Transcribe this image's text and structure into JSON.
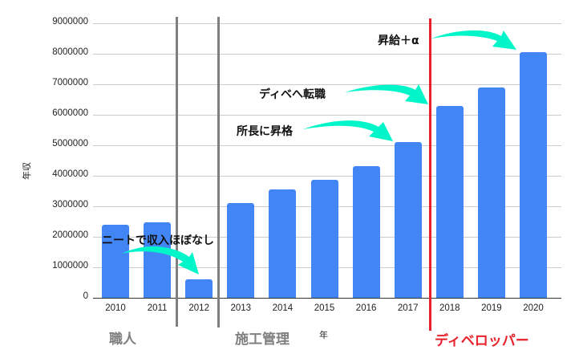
{
  "chart_data": {
    "type": "bar",
    "title": "",
    "xlabel": "年",
    "ylabel": "年収",
    "ylim": [
      0,
      9000000
    ],
    "yticks": [
      0,
      1000000,
      2000000,
      3000000,
      4000000,
      5000000,
      6000000,
      7000000,
      8000000,
      9000000
    ],
    "grid": true,
    "legend": "none",
    "categories": [
      "2010",
      "2011",
      "2012",
      "2013",
      "2014",
      "2015",
      "2016",
      "2017",
      "2018",
      "2019",
      "2020"
    ],
    "values": [
      2400000,
      2480000,
      600000,
      3100000,
      3550000,
      3870000,
      4320000,
      5100000,
      6300000,
      6900000,
      8050000
    ],
    "bar_color": "#4285f4",
    "eras": [
      {
        "label": "職人",
        "color": "#7f7f7f"
      },
      {
        "label": "施工管理",
        "color": "#7f7f7f"
      },
      {
        "label": "ディベロッパー",
        "color": "#e8202a"
      }
    ],
    "annotations": [
      {
        "text": "ニートで収入ほぼなし",
        "target": "2012"
      },
      {
        "text": "所長に昇格",
        "target": "2017"
      },
      {
        "text": "ディベへ転職",
        "target": "2018"
      },
      {
        "text": "昇給＋α",
        "target": "2020"
      }
    ],
    "arrow_color": "#00f5c8"
  },
  "ytick_labels": [
    "9000000",
    "8000000",
    "7000000",
    "6000000",
    "5000000",
    "4000000",
    "3000000",
    "2000000",
    "1000000",
    "0"
  ],
  "axis": {
    "x_title": "年",
    "y_title": "年収"
  },
  "eras": {
    "craftsman": "職人",
    "construction_mgmt": "施工管理",
    "developer": "ディベロッパー"
  },
  "annotations": {
    "neet": "ニートで収入ほぼなし",
    "promoted": "所長に昇格",
    "job_change": "ディベへ転職",
    "raise": "昇給＋α"
  }
}
